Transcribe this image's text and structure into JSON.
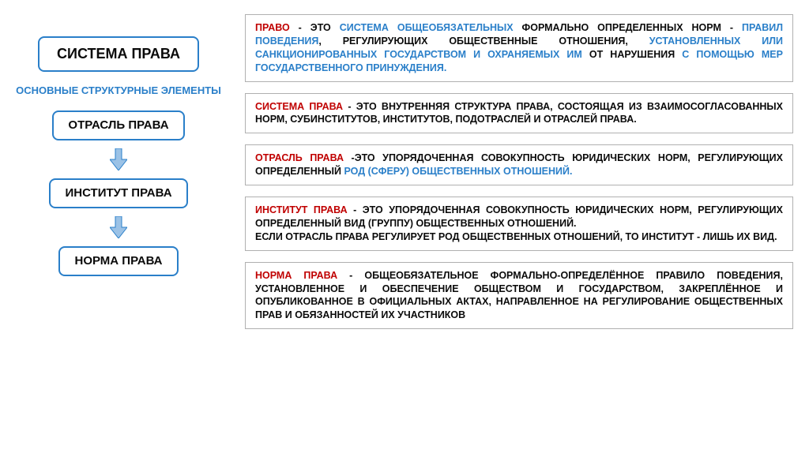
{
  "colors": {
    "border": "#2a7fc9",
    "red": "#c00000",
    "blue": "#2a7fc9",
    "black": "#0a0a0a",
    "boxBorder": "#b0b0b0",
    "arrowFill": "#9bc2e6",
    "arrowStroke": "#2a7fc9"
  },
  "left": {
    "title": "СИСТЕМА ПРАВА",
    "subtitle": "ОСНОВНЫЕ СТРУКТУРНЫЕ ЭЛЕМЕНТЫ",
    "items": [
      "ОТРАСЛЬ ПРАВА",
      "ИНСТИТУТ ПРАВА",
      "НОРМА ПРАВА"
    ]
  },
  "defs": [
    {
      "parts": [
        {
          "c": "red",
          "t": "ПРАВО"
        },
        {
          "c": "black",
          "t": " - ЭТО "
        },
        {
          "c": "blue",
          "t": "СИСТЕМА ОБЩЕОБЯЗАТЕЛЬНЫХ"
        },
        {
          "c": "black",
          "t": " ФОРМАЛЬНО ОПРЕДЕЛЕННЫХ НОРМ - "
        },
        {
          "c": "blue",
          "t": "ПРАВИЛ ПОВЕДЕНИЯ"
        },
        {
          "c": "black",
          "t": ", РЕГУЛИРУЮЩИХ ОБЩЕСТВЕННЫЕ ОТНОШЕНИЯ, "
        },
        {
          "c": "blue",
          "t": "УСТАНОВЛЕННЫХ ИЛИ САНКЦИОНИРОВАННЫХ ГОСУДАРСТВОМ И ОХРАНЯЕМЫХ ИМ"
        },
        {
          "c": "black",
          "t": " ОТ  НАРУШЕНИЯ "
        },
        {
          "c": "blue",
          "t": "С ПОМОЩЬЮ МЕР ГОСУДАРСТВЕННОГО ПРИНУЖДЕНИЯ."
        }
      ],
      "justify": true
    },
    {
      "parts": [
        {
          "c": "red",
          "t": "СИСТЕМА ПРАВА"
        },
        {
          "c": "black",
          "t": " - ЭТО ВНУТРЕННЯЯ СТРУКТУРА ПРАВА, СОСТОЯЩАЯ ИЗ ВЗАИМОСОГЛАСОВАННЫХ НОРМ, СУБИНСТИТУТОВ, ИНСТИТУТОВ, ПОДОТРАСЛЕЙ И ОТРАСЛЕЙ ПРАВА."
        }
      ],
      "justify": true
    },
    {
      "parts": [
        {
          "c": "red",
          "t": "ОТРАСЛЬ ПРАВА"
        },
        {
          "c": "black",
          "t": " -ЭТО УПОРЯДОЧЕННАЯ СОВОКУПНОСТЬ ЮРИДИЧЕСКИХ НОРМ, РЕГУЛИРУЮЩИХ ОПРЕДЕЛЕННЫЙ "
        },
        {
          "c": "blue",
          "t": "РОД (СФЕРУ) ОБЩЕСТВЕННЫХ ОТНОШЕНИЙ."
        }
      ],
      "justify": true
    },
    {
      "parts": [
        {
          "c": "red",
          "t": "ИНСТИТУТ ПРАВА"
        },
        {
          "c": "black",
          "t": " - ЭТО УПОРЯДОЧЕННАЯ СОВОКУПНОСТЬ ЮРИДИЧЕСКИХ НОРМ, РЕГУЛИРУЮЩИХ ОПРЕДЕЛЕННЫЙ ВИД (ГРУППУ) ОБЩЕСТВЕННЫХ ОТНОШЕНИЙ.\nЕСЛИ ОТРАСЛЬ ПРАВА РЕГУЛИРУЕТ РОД ОБЩЕСТВЕННЫХ ОТНОШЕНИЙ, ТО ИНСТИТУТ - ЛИШЬ ИХ ВИД."
        }
      ],
      "justify": true
    },
    {
      "parts": [
        {
          "c": "red",
          "t": "НОРМА ПРАВА"
        },
        {
          "c": "black",
          "t": " - ОБЩЕОБЯЗАТЕЛЬНОЕ ФОРМАЛЬНО-ОПРЕДЕЛЁННОЕ ПРАВИЛО ПОВЕДЕНИЯ, УСТАНОВЛЕННОЕ И ОБЕСПЕЧЕНИЕ ОБЩЕСТВОМ И ГОСУДАРСТВОМ, ЗАКРЕПЛЁННОЕ И ОПУБЛИКОВАННОЕ В ОФИЦИАЛЬНЫХ АКТАХ, НАПРАВЛЕННОЕ НА РЕГУЛИРОВАНИЕ ОБЩЕСТВЕННЫХ ПРАВ И ОБЯЗАННОСТЕЙ ИХ УЧАСТНИКОВ"
        }
      ],
      "justify": true
    }
  ]
}
